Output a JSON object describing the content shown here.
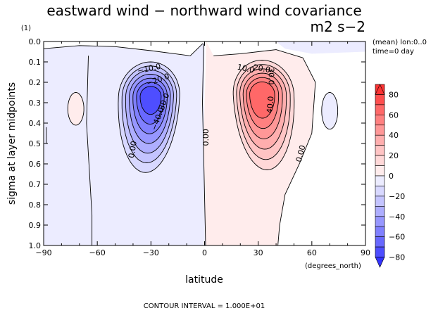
{
  "chart_data": {
    "type": "contour",
    "title": "eastward wind − northward wind covariance",
    "units": "m2 s−2",
    "corner_label": "(1)",
    "info_lines": [
      "(mean) lon:0..0",
      "time=0 day"
    ],
    "xlabel": "latitude",
    "xunit": "(degrees_north)",
    "ylabel": "sigma at layer midpoints",
    "footer": "CONTOUR INTERVAL = 1.000E+01",
    "xlim": [
      -90,
      90
    ],
    "ylim": [
      1.0,
      0.0
    ],
    "x_ticks": [
      "−90",
      "−60",
      "−30",
      "0",
      "30",
      "60",
      "90"
    ],
    "y_ticks": [
      "0.0",
      "0.1",
      "0.2",
      "0.3",
      "0.4",
      "0.5",
      "0.6",
      "0.7",
      "0.8",
      "0.9",
      "1.0"
    ],
    "contour_interval": 10,
    "contour_labels": [
      "−10.0",
      "−20.0",
      "−30.0",
      "−40.0",
      "10.0",
      "20.0",
      "30.0",
      "40.0",
      "0.00",
      "0.00",
      "0.00",
      "0.00"
    ],
    "features": [
      {
        "sign": "negative",
        "center_lat": -30,
        "center_sigma": 0.27,
        "peak": -75
      },
      {
        "sign": "positive",
        "center_lat": 32,
        "center_sigma": 0.26,
        "peak": 70
      }
    ],
    "colorbar": {
      "ticks": [
        "80",
        "60",
        "40",
        "20",
        "0",
        "−20",
        "−40",
        "−60",
        "−80"
      ],
      "range": [
        -90,
        90
      ],
      "colors_positive": [
        "#ffecec",
        "#ffd8d8",
        "#ffc4c4",
        "#ffaeae",
        "#ff9797",
        "#ff8080",
        "#ff6868",
        "#ff4e4e",
        "#ff3333"
      ],
      "colors_negative": [
        "#ececff",
        "#d8d8ff",
        "#c4c4ff",
        "#aeaeff",
        "#9797ff",
        "#8080ff",
        "#6868ff",
        "#4e4eff",
        "#3333ff"
      ],
      "zero_color": "#ffffff"
    }
  }
}
